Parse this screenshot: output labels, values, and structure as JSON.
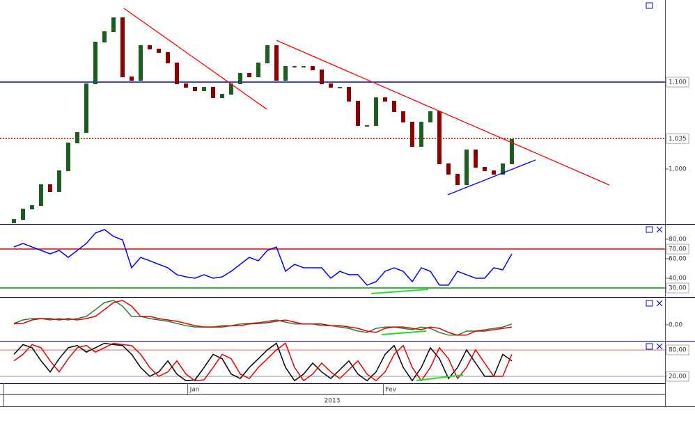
{
  "chart_data": [
    {
      "type": "candlestick",
      "up_color": "#1b5e20",
      "down_color": "#8b0000",
      "ylim": [
        0.9368,
        1.1944
      ],
      "yticks": [
        {
          "value": 1.1,
          "label": "1,100"
        },
        {
          "value": 1.035,
          "label": "1,035"
        },
        {
          "value": 1.0,
          "label": "1,000"
        }
      ],
      "open": [
        0.938,
        0.942,
        0.954,
        0.958,
        0.982,
        0.974,
        0.998,
        1.03,
        1.042,
        1.098,
        1.146,
        1.158,
        1.174,
        1.106,
        1.102,
        1.142,
        1.138,
        1.134,
        1.122,
        1.098,
        1.094,
        1.09,
        1.094,
        1.082,
        1.086,
        1.098,
        1.11,
        1.106,
        1.122,
        1.142,
        1.102,
        1.118,
        1.118,
        1.118,
        1.114,
        1.098,
        1.094,
        1.094,
        1.078,
        1.05,
        1.05,
        1.082,
        1.078,
        1.066,
        1.054,
        1.026,
        1.054,
        1.066,
        1.006,
        0.994,
        0.982,
        1.022,
        1.002,
        0.998,
        0.994,
        1.006
      ],
      "close": [
        0.942,
        0.954,
        0.958,
        0.982,
        0.974,
        0.998,
        1.03,
        1.042,
        1.098,
        1.146,
        1.158,
        1.174,
        1.106,
        1.102,
        1.142,
        1.138,
        1.134,
        1.122,
        1.098,
        1.094,
        1.09,
        1.094,
        1.082,
        1.086,
        1.098,
        1.11,
        1.106,
        1.122,
        1.142,
        1.102,
        1.118,
        1.118,
        1.118,
        1.114,
        1.098,
        1.094,
        1.094,
        1.078,
        1.05,
        1.05,
        1.082,
        1.078,
        1.066,
        1.054,
        1.026,
        1.054,
        1.066,
        1.006,
        0.994,
        0.982,
        1.022,
        1.002,
        0.998,
        0.994,
        1.006,
        1.034
      ]
    },
    {
      "type": "line",
      "ylim": [
        20.7,
        95
      ],
      "yticks": [
        {
          "value": 80,
          "label": "80,00"
        },
        {
          "value": 70,
          "label": "70,00"
        },
        {
          "value": 60,
          "label": "60,00"
        },
        {
          "value": 40,
          "label": "40,00"
        },
        {
          "value": 30,
          "label": "30,00"
        }
      ],
      "series": [
        {
          "color": "#0000ff",
          "values": [
            72.1,
            75.7,
            72.1,
            68.6,
            65,
            68.6,
            61.4,
            68.6,
            75.7,
            86.4,
            90,
            82.9,
            79.3,
            50.7,
            61.4,
            57.9,
            54.3,
            50.7,
            43.6,
            41.4,
            40,
            43.6,
            40,
            41.4,
            47.1,
            54.3,
            61.4,
            57.9,
            68.6,
            72.1,
            47.1,
            54.3,
            50.7,
            50.7,
            50.7,
            40,
            47.1,
            43.6,
            43.6,
            32.9,
            36.4,
            47.1,
            50.7,
            47.1,
            36.4,
            50.7,
            47.1,
            32.9,
            32.9,
            47.1,
            43.6,
            40,
            40,
            50.7,
            48.6,
            65
          ]
        }
      ]
    },
    {
      "type": "line",
      "ylim": [
        -0.0059,
        0.01
      ],
      "yticks": [
        {
          "value": 0,
          "label": "0,00"
        }
      ],
      "series": [
        {
          "color": "#2e7d32",
          "values": [
            0.0005,
            0.0018,
            0.0023,
            0.0023,
            0.0018,
            0.0023,
            0.0018,
            0.0023,
            0.0031,
            0.0056,
            0.0082,
            0.009,
            0.0069,
            0.0031,
            0.0031,
            0.0023,
            0.0018,
            0.0013,
            0.0005,
            -0.0003,
            -0.0008,
            -0.0008,
            -0.0008,
            -0.0003,
            -0.0003,
            0.0003,
            0.0005,
            0.0008,
            0.0013,
            0.0018,
            0.001,
            0.0003,
            0.0003,
            0.0003,
            -0.0003,
            -0.0003,
            -0.0008,
            -0.0013,
            -0.0023,
            -0.0028,
            -0.0013,
            -0.0008,
            -0.0008,
            -0.0013,
            -0.0018,
            -0.0008,
            -0.0013,
            -0.0028,
            -0.0038,
            -0.0038,
            -0.0023,
            -0.0023,
            -0.0018,
            -0.0013,
            -0.0008,
            0.0003
          ]
        },
        {
          "color": "#e00000",
          "values": [
            0.0004,
            0.0005,
            0.0018,
            0.0023,
            0.0023,
            0.0018,
            0.0023,
            0.0018,
            0.0023,
            0.0031,
            0.0056,
            0.0082,
            0.009,
            0.0069,
            0.0031,
            0.0031,
            0.0023,
            0.0018,
            0.0013,
            0.0005,
            -0.0003,
            -0.0008,
            -0.0008,
            -0.0008,
            -0.0003,
            -0.0003,
            0.0003,
            0.0005,
            0.0008,
            0.0013,
            0.0018,
            0.001,
            0.0003,
            0.0003,
            0.0003,
            -0.0003,
            -0.0003,
            -0.0008,
            -0.0013,
            -0.0023,
            -0.0028,
            -0.0013,
            -0.0008,
            -0.0008,
            -0.0013,
            -0.0018,
            -0.0008,
            -0.0013,
            -0.0028,
            -0.0038,
            -0.0038,
            -0.0023,
            -0.0023,
            -0.0018,
            -0.0013,
            -0.0008
          ]
        }
      ]
    },
    {
      "type": "line",
      "ylim": [
        4.2,
        99
      ],
      "yticks": [
        {
          "value": 80,
          "label": "80,00"
        },
        {
          "value": 20,
          "label": "20,00"
        }
      ],
      "xlim": [
        -1.538,
        71.92
      ],
      "xticks": [
        {
          "value": 19.2,
          "label": "Jan"
        },
        {
          "value": 40.8,
          "label": "Fev"
        }
      ],
      "x_group_label": "2013",
      "series": [
        {
          "color": "#000000",
          "values": [
            70,
            92,
            85,
            55,
            30,
            60,
            85,
            90,
            75,
            85,
            95,
            92,
            90,
            70,
            40,
            20,
            30,
            55,
            25,
            10,
            12,
            40,
            70,
            60,
            25,
            15,
            40,
            60,
            80,
            95,
            40,
            10,
            25,
            50,
            30,
            15,
            35,
            55,
            25,
            10,
            30,
            70,
            90,
            40,
            10,
            40,
            85,
            60,
            15,
            40,
            80,
            50,
            20,
            20,
            70,
            55
          ]
        },
        {
          "color": "#e00000",
          "values": [
            55,
            70,
            92,
            85,
            55,
            30,
            60,
            85,
            90,
            75,
            85,
            95,
            92,
            90,
            70,
            40,
            20,
            30,
            55,
            25,
            10,
            12,
            40,
            70,
            60,
            25,
            15,
            40,
            60,
            80,
            95,
            40,
            10,
            25,
            50,
            30,
            15,
            35,
            55,
            25,
            10,
            30,
            70,
            90,
            40,
            10,
            40,
            85,
            60,
            15,
            40,
            80,
            50,
            20,
            20,
            70
          ]
        }
      ]
    }
  ]
}
